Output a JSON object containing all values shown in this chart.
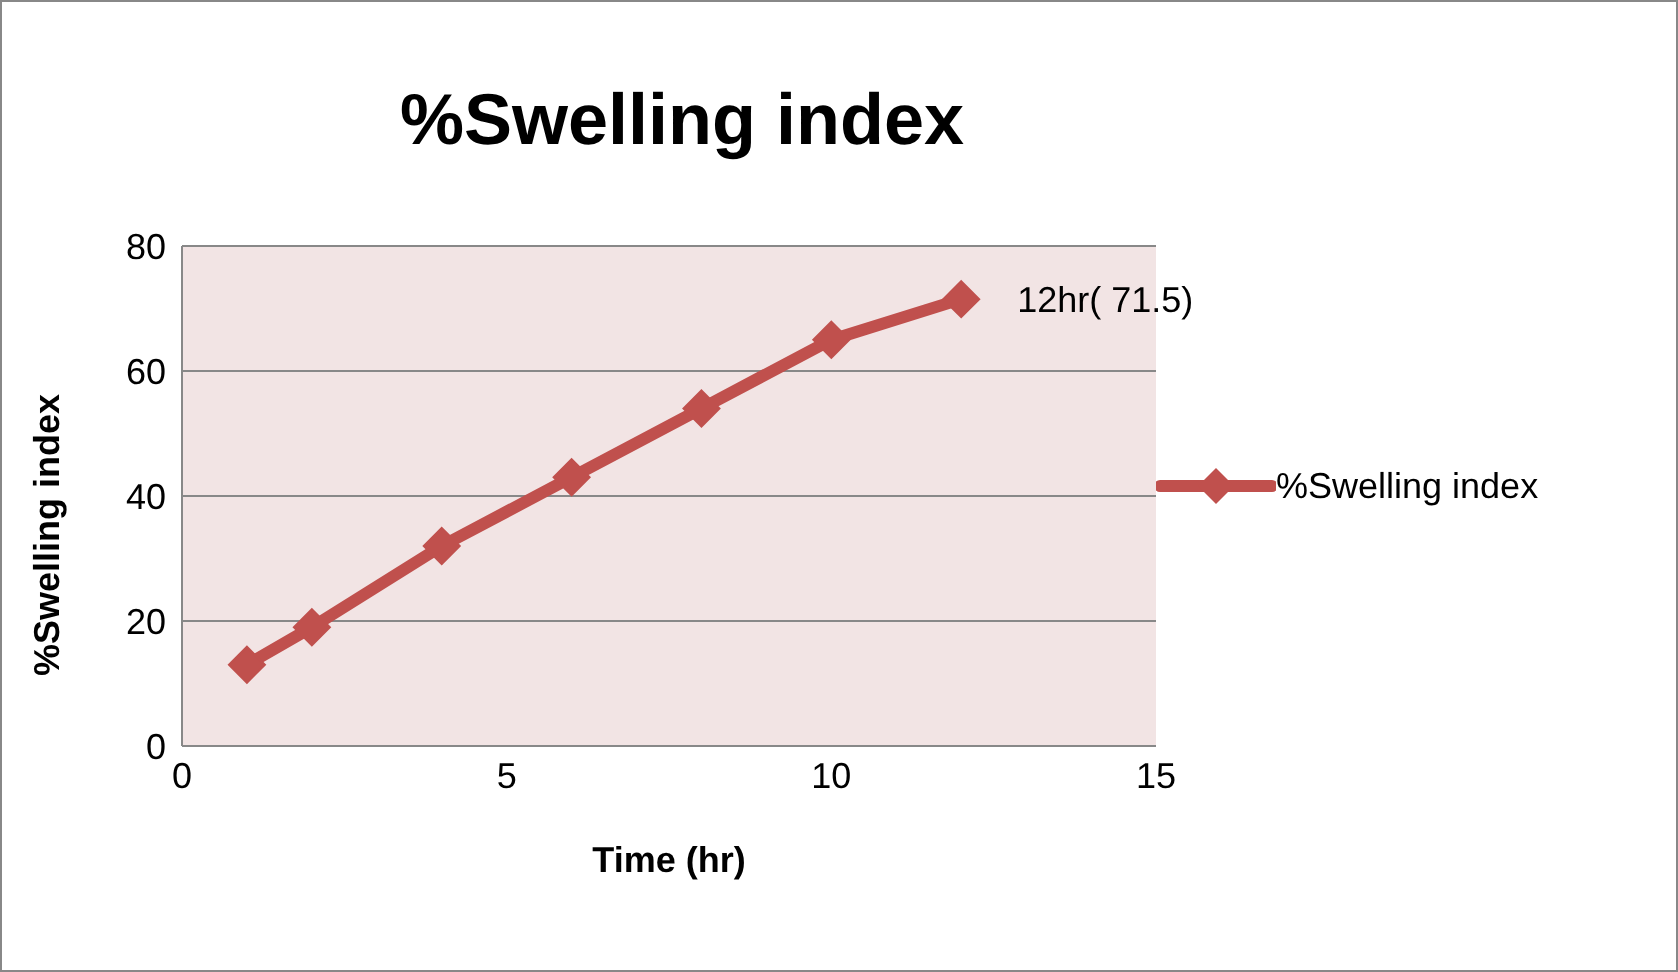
{
  "chart_data": {
    "type": "line",
    "title": "%Swelling index",
    "xlabel": "Time (hr)",
    "ylabel": "%Swelling index",
    "x": [
      1,
      2,
      4,
      6,
      8,
      10,
      12
    ],
    "series": [
      {
        "name": "%Swelling index",
        "color": "#c0504d",
        "values": [
          13,
          19,
          32,
          43,
          54,
          65,
          71.5
        ]
      }
    ],
    "xlim": [
      0,
      15
    ],
    "xticks": [
      0,
      5,
      10,
      15
    ],
    "ylim": [
      0,
      80
    ],
    "yticks": [
      0,
      20,
      40,
      60,
      80
    ],
    "annotations": [
      {
        "text": "12hr( 71.5)",
        "x": 12,
        "y": 71.5
      }
    ],
    "grid": "y",
    "legend": "right",
    "marker": "diamond",
    "line_style": "solid"
  }
}
